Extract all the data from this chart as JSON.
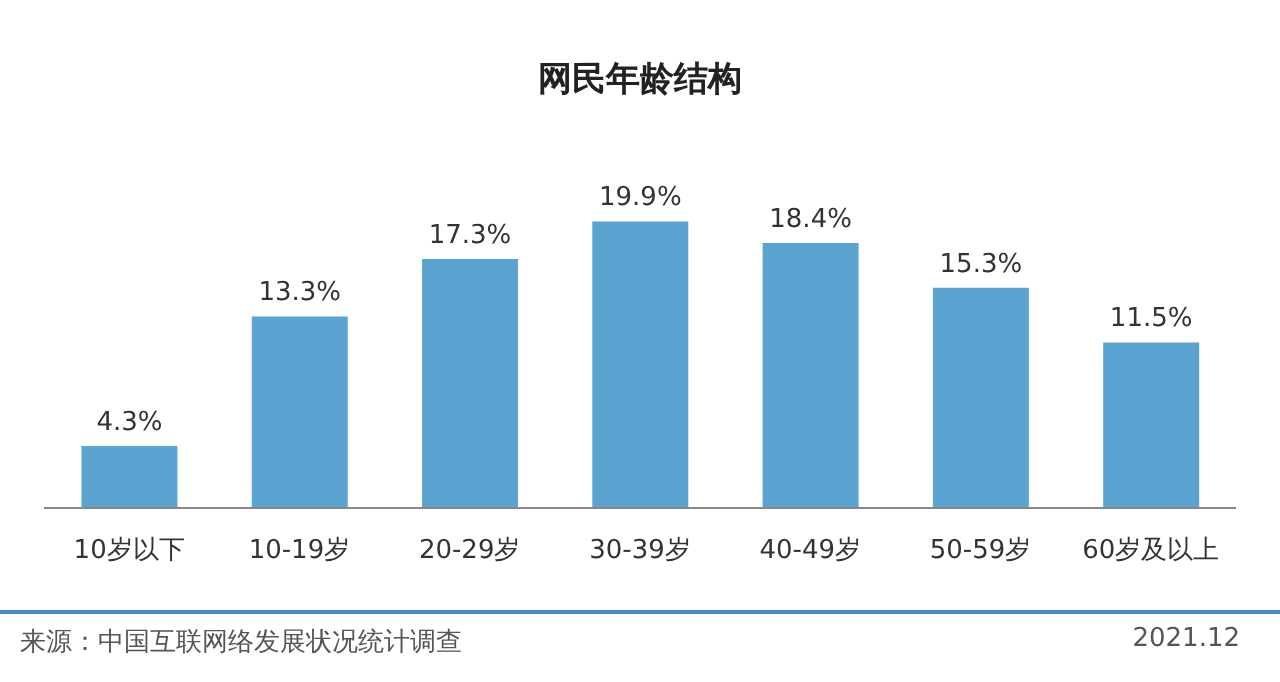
{
  "chart_data": {
    "type": "bar",
    "title": "网民年龄结构",
    "categories": [
      "10岁以下",
      "10-19岁",
      "20-29岁",
      "30-39岁",
      "40-49岁",
      "50-59岁",
      "60岁及以上"
    ],
    "values": [
      4.3,
      13.3,
      17.3,
      19.9,
      18.4,
      15.3,
      11.5
    ],
    "value_labels": [
      "4.3%",
      "13.3%",
      "17.3%",
      "19.9%",
      "18.4%",
      "15.3%",
      "11.5%"
    ],
    "color": "#5ba4d1",
    "annotations": [
      "来源：中国互联网络发展状况统计调查",
      "2021.12"
    ]
  }
}
